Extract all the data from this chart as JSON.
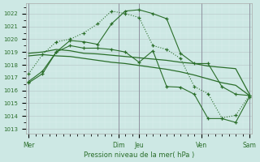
{
  "background_color": "#cde8e4",
  "grid_color_major": "#bbcccc",
  "grid_color_minor": "#ddeeee",
  "line_color": "#2a6e2a",
  "vline_color": "#888899",
  "ylim_min": 1012.6,
  "ylim_max": 1022.8,
  "xlim_min": -0.2,
  "xlim_max": 16.2,
  "yticks": [
    1013,
    1014,
    1015,
    1016,
    1017,
    1018,
    1019,
    1020,
    1021,
    1022
  ],
  "xlabel": "Pression niveau de la mer( hPa )",
  "x_day_positions": [
    0,
    6.5,
    8,
    12.5,
    16
  ],
  "x_day_labels": [
    "Mer",
    "Dim",
    "Jeu",
    "Ven",
    "Sam"
  ],
  "vlines_x": [
    0,
    6.5,
    8,
    12.5,
    16
  ],
  "curve_peak_x": [
    0,
    1,
    2,
    3,
    4,
    5,
    6,
    7,
    8,
    9,
    10,
    11,
    12,
    13,
    14,
    15,
    16
  ],
  "curve_peak_y": [
    1016.7,
    1017.5,
    1019.0,
    1019.9,
    1019.8,
    1019.6,
    1021.2,
    1022.2,
    1022.3,
    1022.0,
    1021.6,
    1018.9,
    1018.1,
    1018.1,
    1016.3,
    1015.7,
    1015.6
  ],
  "curve_flat1_x": [
    0,
    1,
    2,
    3,
    4,
    5,
    6,
    7,
    8,
    9,
    10,
    11,
    12,
    13,
    14,
    15,
    16
  ],
  "curve_flat1_y": [
    1018.9,
    1019.0,
    1019.2,
    1019.1,
    1018.9,
    1018.85,
    1018.75,
    1018.65,
    1018.55,
    1018.45,
    1018.35,
    1018.2,
    1018.1,
    1017.9,
    1017.8,
    1017.7,
    1015.7
  ],
  "curve_flat2_x": [
    0,
    1,
    2,
    3,
    4,
    5,
    6,
    7,
    8,
    9,
    10,
    11,
    12,
    13,
    14,
    15,
    16
  ],
  "curve_flat2_y": [
    1018.7,
    1018.8,
    1018.7,
    1018.65,
    1018.5,
    1018.35,
    1018.2,
    1018.1,
    1017.95,
    1017.8,
    1017.65,
    1017.45,
    1017.2,
    1016.9,
    1016.6,
    1016.4,
    1015.6
  ],
  "curve_decline_x": [
    0,
    1,
    2,
    3,
    4,
    5,
    6,
    7,
    8,
    9,
    10,
    11,
    12,
    13,
    14,
    15,
    16
  ],
  "curve_decline_y": [
    1016.6,
    1017.3,
    1019.0,
    1019.5,
    1019.3,
    1019.3,
    1019.2,
    1019.0,
    1018.2,
    1019.1,
    1016.3,
    1016.25,
    1015.7,
    1013.8,
    1013.8,
    1013.5,
    1015.5
  ],
  "curve_dotted_x": [
    0,
    1,
    2,
    3,
    4,
    5,
    6,
    7,
    8,
    9,
    10,
    11,
    12,
    13,
    14,
    15,
    16
  ],
  "curve_dotted_y": [
    1017.3,
    1018.8,
    1019.8,
    1020.0,
    1020.5,
    1021.2,
    1022.2,
    1022.0,
    1021.7,
    1019.5,
    1019.2,
    1018.5,
    1016.3,
    1015.75,
    1013.85,
    1014.05,
    1015.6
  ]
}
